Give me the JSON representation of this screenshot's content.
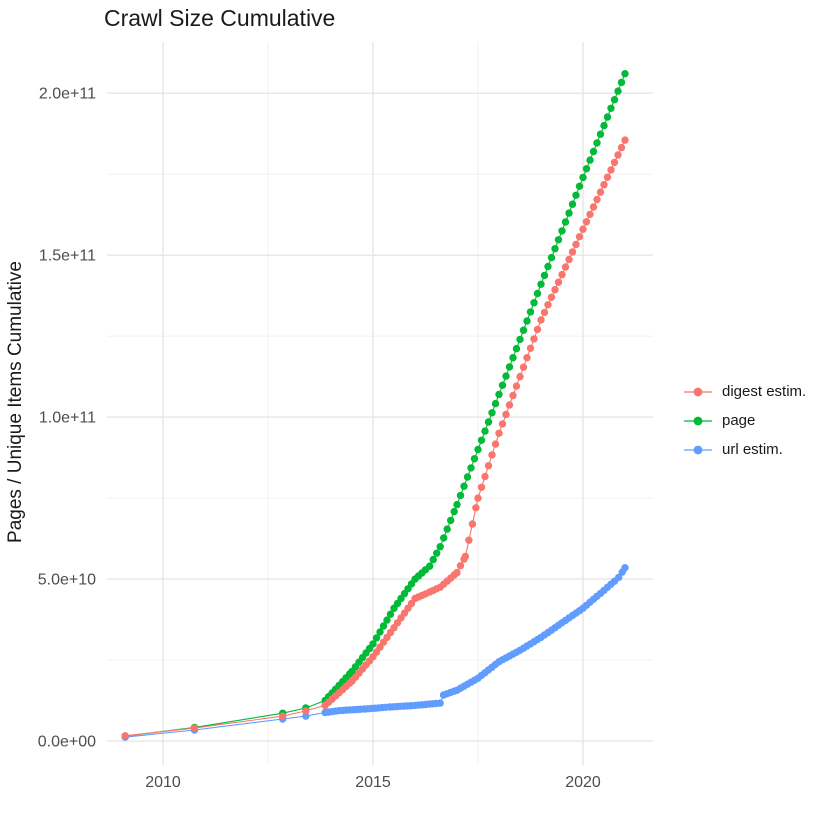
{
  "chart_data": {
    "type": "line",
    "marker": "point",
    "title": "Crawl Size Cumulative",
    "xlabel": "",
    "ylabel": "Pages / Unique Items Cumulative",
    "grid": true,
    "legend_position": "right",
    "xlim": [
      2008.667,
      2021.667
    ],
    "ylim": [
      -7400000000.0,
      215800000000.0
    ],
    "x_ticks": {
      "values": [
        2010,
        2015,
        2020
      ],
      "labels": [
        "2010",
        "2015",
        "2020"
      ],
      "minor": [
        2012.5,
        2017.5
      ]
    },
    "y_ticks": {
      "values": [
        0,
        50000000000.0,
        100000000000.0,
        150000000000.0,
        200000000000.0
      ],
      "labels": [
        "0.0e+00",
        "5.0e+10",
        "1.0e+11",
        "1.5e+11",
        "2.0e+11"
      ],
      "minor": [
        25000000000.0,
        75000000000.0,
        125000000000.0,
        175000000000.0
      ]
    },
    "dot_interval_years": 0.0833,
    "dense_from_year": 2013.8,
    "series": [
      {
        "name": "digest estim.",
        "color": "#F8766D",
        "z": 3,
        "keyframes": [
          [
            2009.1,
            1600000000.0
          ],
          [
            2010.75,
            4000000000.0
          ],
          [
            2012.85,
            7700000000.0
          ],
          [
            2013.4,
            9300000000.0
          ],
          [
            2013.86,
            11000000000.0
          ],
          [
            2014.5,
            18500000000.0
          ],
          [
            2015.0,
            26000000000.0
          ],
          [
            2015.5,
            35000000000.0
          ],
          [
            2016.0,
            44000000000.0
          ],
          [
            2016.35,
            46000000000.0
          ],
          [
            2016.6,
            47500000000.0
          ],
          [
            2017.0,
            52000000000.0
          ],
          [
            2017.2,
            57000000000.0
          ],
          [
            2017.5,
            75000000000.0
          ],
          [
            2018.0,
            95000000000.0
          ],
          [
            2019.0,
            130000000000.0
          ],
          [
            2020.0,
            158000000000.0
          ],
          [
            2021.0,
            185500000000.0
          ]
        ]
      },
      {
        "name": "page",
        "color": "#00BA38",
        "z": 1,
        "keyframes": [
          [
            2009.1,
            1500000000.0
          ],
          [
            2010.75,
            4200000000.0
          ],
          [
            2012.85,
            8600000000.0
          ],
          [
            2013.4,
            10200000000.0
          ],
          [
            2013.86,
            12500000000.0
          ],
          [
            2014.5,
            21500000000.0
          ],
          [
            2015.0,
            30000000000.0
          ],
          [
            2015.5,
            41000000000.0
          ],
          [
            2016.0,
            50000000000.0
          ],
          [
            2016.35,
            54000000000.0
          ],
          [
            2016.6,
            60000000000.0
          ],
          [
            2017.0,
            73000000000.0
          ],
          [
            2017.5,
            90000000000.0
          ],
          [
            2018.0,
            107000000000.0
          ],
          [
            2019.0,
            141000000000.0
          ],
          [
            2020.0,
            174000000000.0
          ],
          [
            2021.0,
            206000000000.0
          ]
        ]
      },
      {
        "name": "url estim.",
        "color": "#619CFF",
        "z": 2,
        "keyframes": [
          [
            2009.1,
            1200000000.0
          ],
          [
            2010.75,
            3400000000.0
          ],
          [
            2012.85,
            6800000000.0
          ],
          [
            2013.4,
            7700000000.0
          ],
          [
            2013.86,
            8800000000.0
          ],
          [
            2014.2,
            9400000000.0
          ],
          [
            2014.8,
            9900000000.0
          ],
          [
            2015.4,
            10500000000.0
          ],
          [
            2016.0,
            11000000000.0
          ],
          [
            2016.6,
            11700000000.0
          ],
          [
            2016.68,
            14200000000.0
          ],
          [
            2017.0,
            15700000000.0
          ],
          [
            2017.5,
            19400000000.0
          ],
          [
            2018.0,
            24500000000.0
          ],
          [
            2018.5,
            28000000000.0
          ],
          [
            2019.0,
            32000000000.0
          ],
          [
            2019.5,
            36500000000.0
          ],
          [
            2020.0,
            41000000000.0
          ],
          [
            2020.5,
            46500000000.0
          ],
          [
            2020.85,
            50500000000.0
          ],
          [
            2021.0,
            53500000000.0
          ]
        ]
      }
    ]
  }
}
